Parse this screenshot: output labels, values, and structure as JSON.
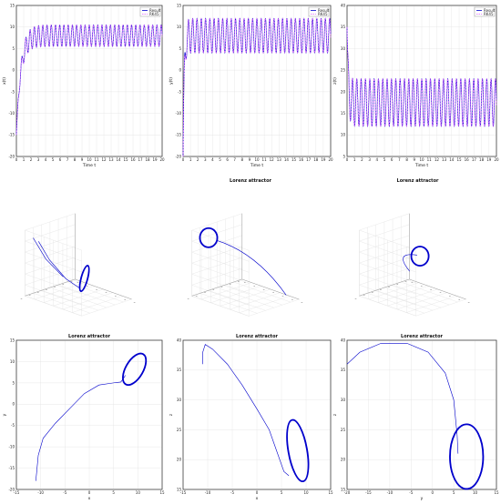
{
  "colors": {
    "primary": "#0000cc",
    "secondary": "#e066ff",
    "grid": "#e2e2e2",
    "axis": "#333333"
  },
  "legend_labels": [
    "Result",
    "RK45"
  ],
  "chart_data": [
    {
      "id": "ts-x",
      "type": "line",
      "xlabel": "Time t",
      "ylabel": "x(t)",
      "xlim": [
        0,
        20
      ],
      "ylim": [
        -20,
        15
      ],
      "xticks": [
        0,
        1,
        2,
        3,
        4,
        5,
        6,
        7,
        8,
        9,
        10,
        11,
        12,
        13,
        14,
        15,
        16,
        17,
        18,
        19,
        20
      ],
      "yticks": [
        -20,
        -15,
        -10,
        -5,
        0,
        5,
        10,
        15
      ],
      "legend": "top-right",
      "signal": {
        "initial": -15,
        "center": 8,
        "amplitude": 2.5,
        "period": 0.58,
        "settle": 0.6
      }
    },
    {
      "id": "ts-y",
      "type": "line",
      "xlabel": "Time t",
      "ylabel": "y(t)",
      "xlim": [
        0,
        20
      ],
      "ylim": [
        -20,
        15
      ],
      "xticks": [
        0,
        1,
        2,
        3,
        4,
        5,
        6,
        7,
        8,
        9,
        10,
        11,
        12,
        13,
        14,
        15,
        16,
        17,
        18,
        19,
        20
      ],
      "yticks": [
        -20,
        -15,
        -10,
        -5,
        0,
        5,
        10,
        15
      ],
      "legend": "top-right",
      "signal": {
        "initial": -20,
        "center": 8,
        "amplitude": 4,
        "period": 0.58,
        "settle": 0.15
      }
    },
    {
      "id": "ts-z",
      "type": "line",
      "xlabel": "Time t",
      "ylabel": "z(t)",
      "xlim": [
        0,
        20
      ],
      "ylim": [
        5,
        40
      ],
      "xticks": [
        0,
        1,
        2,
        3,
        4,
        5,
        6,
        7,
        8,
        9,
        10,
        11,
        12,
        13,
        14,
        15,
        16,
        17,
        18,
        19,
        20
      ],
      "yticks": [
        5,
        10,
        15,
        20,
        25,
        30,
        35,
        40
      ],
      "legend": "top-right",
      "signal": {
        "initial": 35,
        "center": 17.5,
        "amplitude": 5.5,
        "period": 0.58,
        "settle": 0.15
      }
    },
    {
      "id": "3d-a",
      "type": "line",
      "title": "",
      "view": "a"
    },
    {
      "id": "3d-b",
      "type": "line",
      "title": "Lorenz attractor",
      "view": "b"
    },
    {
      "id": "3d-c",
      "type": "line",
      "title": "Lorenz attractor",
      "view": "c"
    },
    {
      "id": "xy",
      "type": "line",
      "title": "Lorenz attractor",
      "xlabel": "x",
      "ylabel": "y",
      "xlim": [
        -15,
        15
      ],
      "ylim": [
        -20,
        15
      ],
      "xticks": [
        -15,
        -10,
        -5,
        0,
        5,
        10,
        15
      ],
      "yticks": [
        -20,
        -15,
        -10,
        -5,
        0,
        5,
        10,
        15
      ],
      "path": [
        [
          -11,
          -18
        ],
        [
          -10.5,
          -12
        ],
        [
          -9.5,
          -8
        ],
        [
          -7,
          -4.5
        ],
        [
          -4,
          -1
        ],
        [
          -1,
          2.5
        ],
        [
          2,
          4.5
        ],
        [
          5,
          5
        ],
        [
          6.5,
          5.2
        ],
        [
          7.3,
          6.5
        ],
        [
          7.4,
          6.8
        ]
      ],
      "loop": {
        "cx": 9.3,
        "cy": 8.2,
        "rx": 1.9,
        "ry": 4.2,
        "rot": 30
      }
    },
    {
      "id": "xz",
      "type": "line",
      "title": "Lorenz attractor",
      "xlabel": "x",
      "ylabel": "z",
      "xlim": [
        -15,
        15
      ],
      "ylim": [
        15,
        40
      ],
      "xticks": [
        -15,
        -10,
        -5,
        0,
        5,
        10,
        15
      ],
      "yticks": [
        15,
        20,
        25,
        30,
        35,
        40
      ],
      "path": [
        [
          -11,
          36
        ],
        [
          -11,
          38
        ],
        [
          -10.5,
          39.3
        ],
        [
          -9,
          38.5
        ],
        [
          -6,
          36
        ],
        [
          -3,
          32.5
        ],
        [
          0,
          28.5
        ],
        [
          2.5,
          25
        ],
        [
          4,
          21.5
        ],
        [
          5.5,
          18
        ],
        [
          6.5,
          17.3
        ]
      ],
      "loop": {
        "cx": 8.3,
        "cy": 21.5,
        "rx": 2,
        "ry": 5.3,
        "rot": -10
      }
    },
    {
      "id": "yz",
      "type": "line",
      "title": "Lorenz attractor",
      "xlabel": "y",
      "ylabel": "z",
      "xlim": [
        -20,
        15
      ],
      "ylim": [
        15,
        40
      ],
      "xticks": [
        -20,
        -15,
        -10,
        -5,
        0,
        5,
        10,
        15
      ],
      "yticks": [
        15,
        20,
        25,
        30,
        35,
        40
      ],
      "path": [
        [
          -20,
          36
        ],
        [
          -17,
          38
        ],
        [
          -12,
          39.5
        ],
        [
          -6,
          39.5
        ],
        [
          -1,
          38
        ],
        [
          3,
          34.5
        ],
        [
          5,
          30
        ],
        [
          5.8,
          24
        ],
        [
          6,
          21
        ]
      ],
      "loop": {
        "cx": 8,
        "cy": 20.5,
        "rx": 4,
        "ry": 5.5,
        "rot": 0
      }
    }
  ]
}
